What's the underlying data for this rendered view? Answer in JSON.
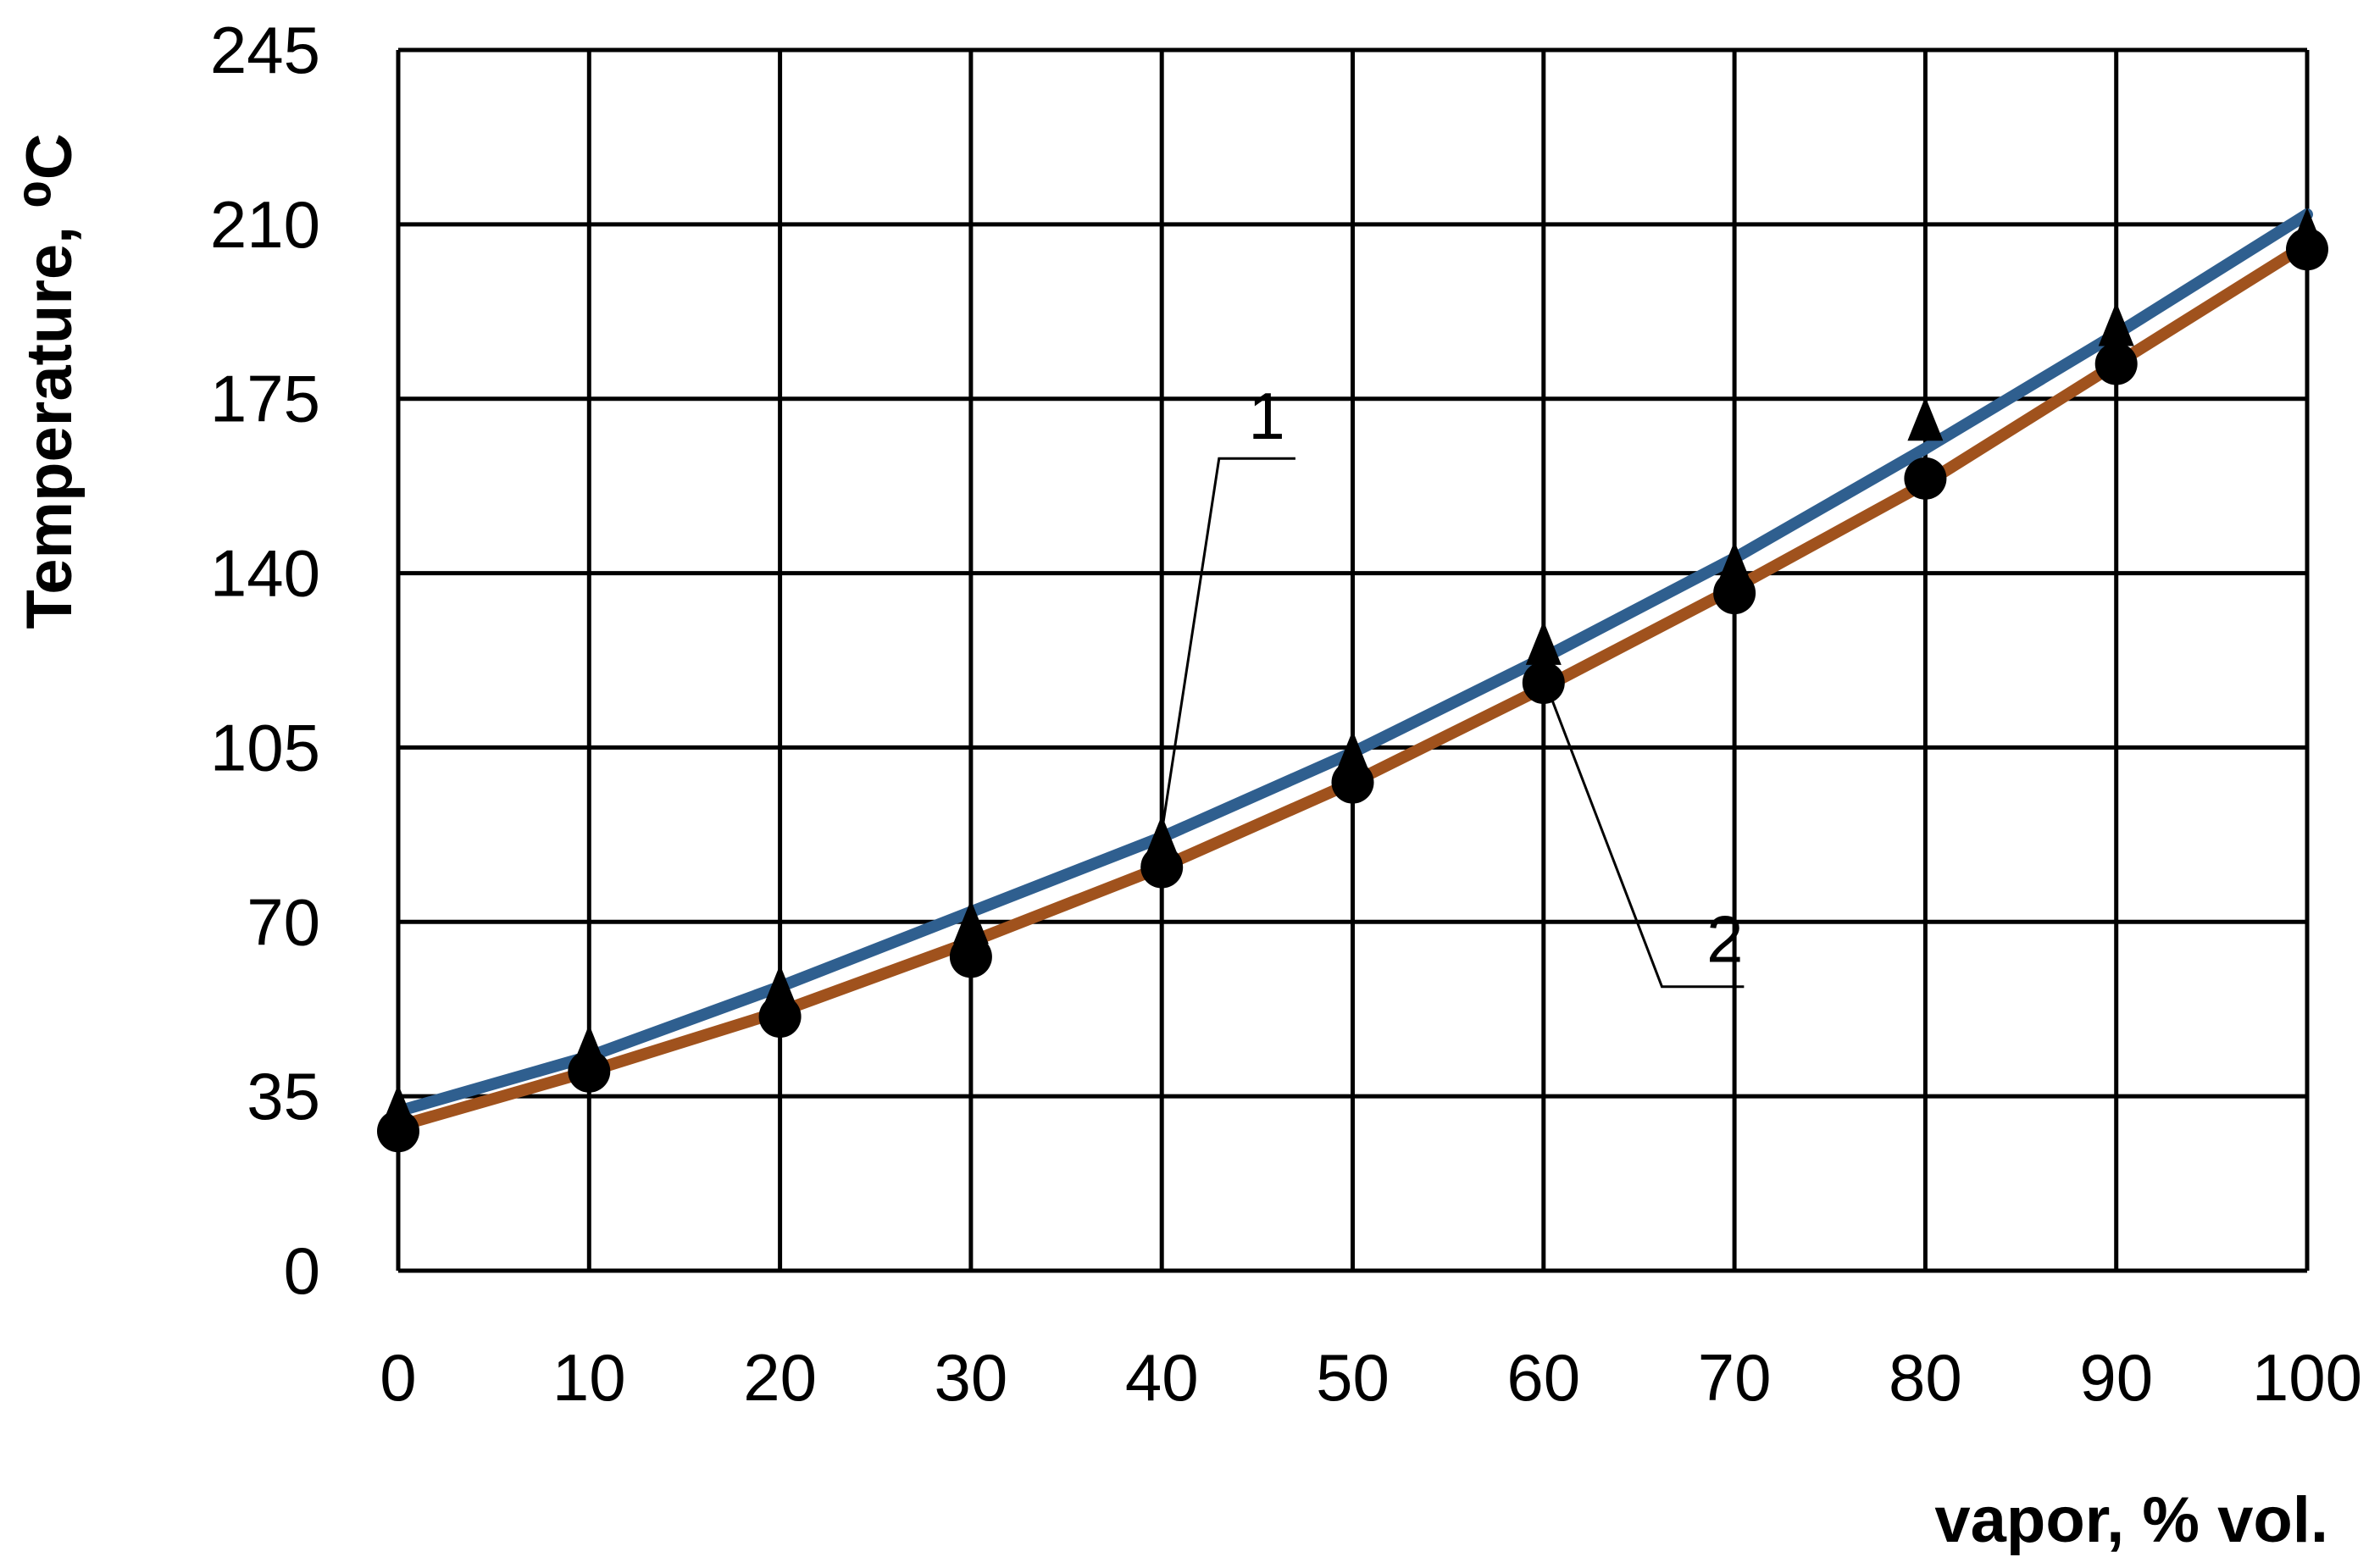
{
  "chart_data": {
    "type": "line",
    "xlabel": "vapor, % vol.",
    "ylabel": "Temperature, ⁰C",
    "x": [
      0,
      10,
      20,
      30,
      40,
      50,
      60,
      70,
      80,
      90,
      100
    ],
    "xlim": [
      0,
      100
    ],
    "ylim": [
      0,
      245
    ],
    "xticks": [
      0,
      10,
      20,
      30,
      40,
      50,
      60,
      70,
      80,
      90,
      100
    ],
    "yticks": [
      0,
      35,
      70,
      105,
      140,
      175,
      210,
      245
    ],
    "grid": true,
    "series": [
      {
        "name": "1",
        "marker": "triangle",
        "color": "#2f5f8f",
        "values": [
          33,
          45,
          57,
          70,
          87,
          104,
          126,
          142,
          171,
          190,
          209
        ],
        "trend": [
          32,
          43,
          57,
          72,
          87,
          104,
          123,
          143,
          165,
          188,
          212
        ]
      },
      {
        "name": "2",
        "marker": "circle",
        "color": "#a0521d",
        "values": [
          28,
          40,
          51,
          63,
          81,
          98,
          118,
          136,
          159,
          182,
          205
        ],
        "trend": [
          29,
          40,
          52,
          66,
          81,
          98,
          117,
          137,
          158,
          182,
          206
        ]
      }
    ],
    "annotations": [
      "1",
      "2"
    ]
  }
}
